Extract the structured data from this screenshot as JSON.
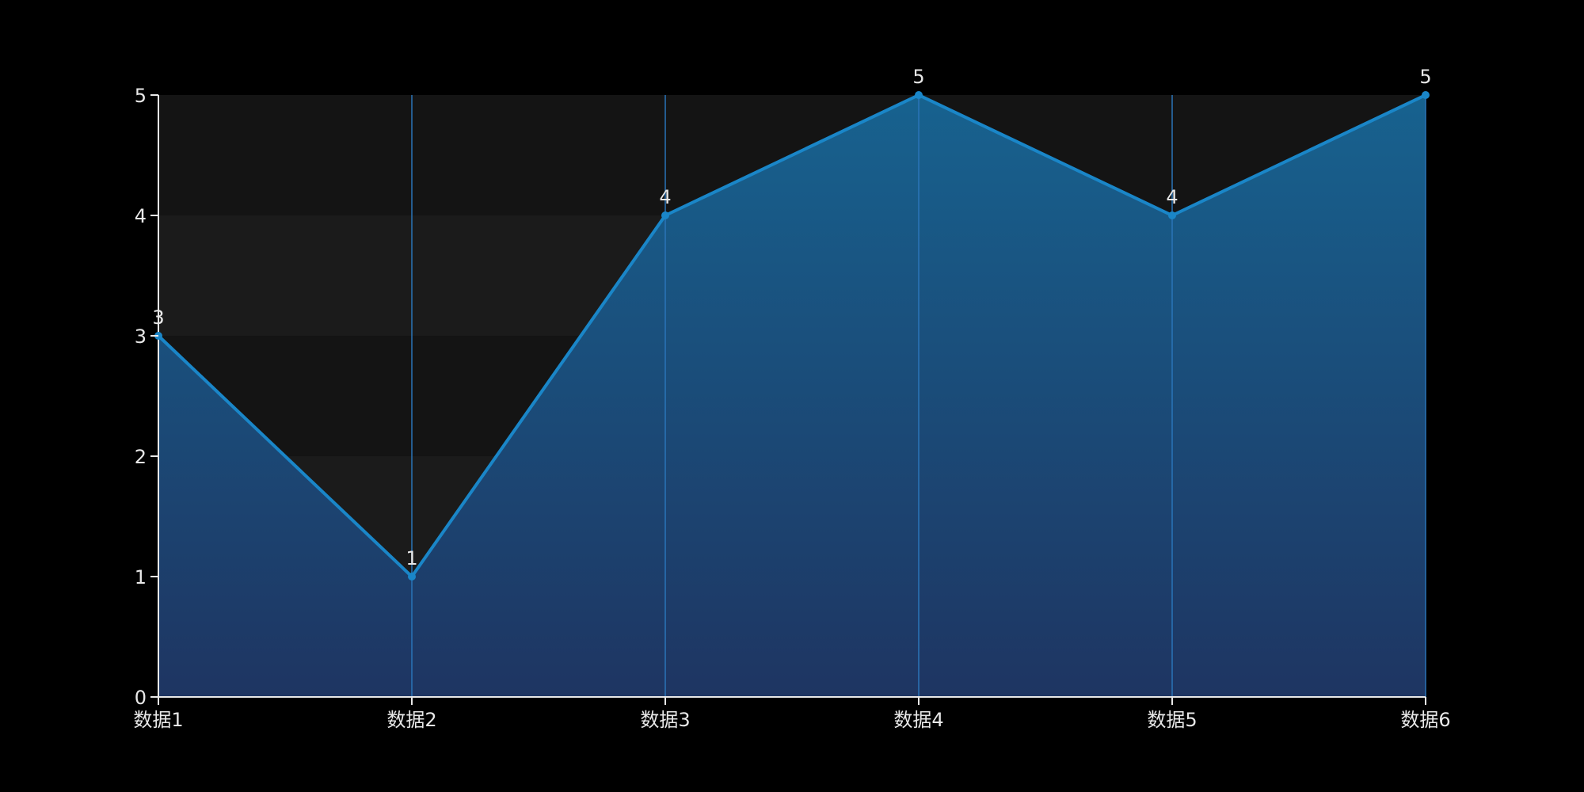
{
  "chart_data": {
    "type": "area",
    "categories": [
      "数据1",
      "数据2",
      "数据3",
      "数据4",
      "数据5",
      "数据6"
    ],
    "series": [
      {
        "values": [
          3,
          1,
          4,
          5,
          4,
          5
        ]
      }
    ],
    "ylim": [
      0,
      5
    ],
    "yticks": [
      "0",
      "1",
      "2",
      "3",
      "4",
      "5"
    ],
    "data_labels": [
      "3",
      "1",
      "4",
      "5",
      "4",
      "5"
    ],
    "grid": true,
    "legend": "none",
    "colors": {
      "background": "#000000",
      "line": "#1a86c8",
      "area_top": "#17628f",
      "area_bottom": "#1e3562",
      "band_dark": "#141414",
      "band_light": "#1b1b1b",
      "axis": "#e8e8e8",
      "vertical_grid": "#2a74b8",
      "text": "#e8e8e8"
    }
  }
}
